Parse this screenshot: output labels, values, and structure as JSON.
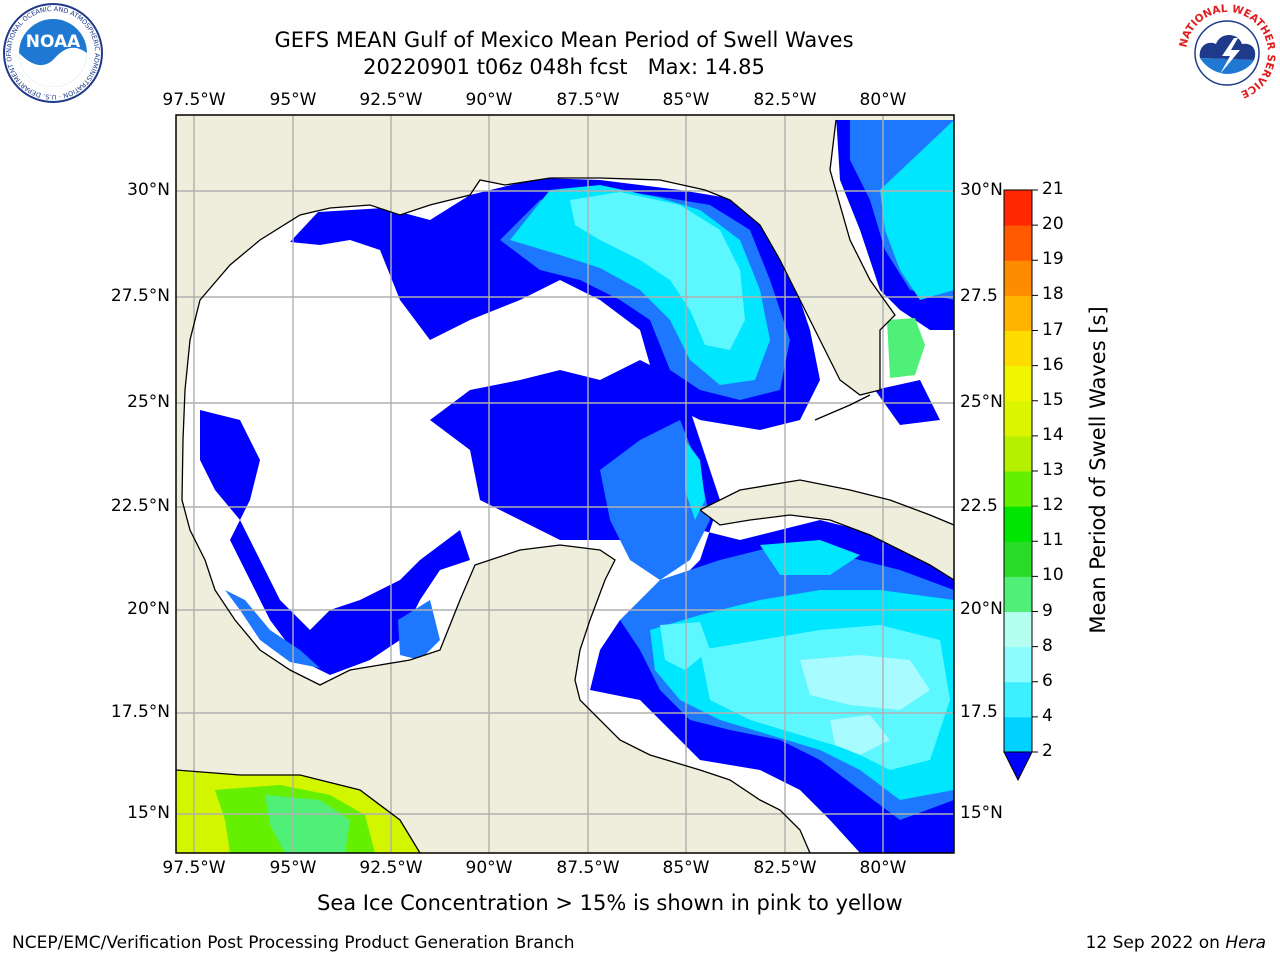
{
  "title_line1": "GEFS MEAN Gulf of Mexico Mean Period of Swell Waves",
  "title_line2": "20220901 t06z 048h fcst   Max: 14.85",
  "lon_labels": [
    "97.5°W",
    "95°W",
    "92.5°W",
    "90°W",
    "87.5°W",
    "85°W",
    "82.5°W",
    "80°W"
  ],
  "lat_labels_left": [
    "30°N",
    "27.5°N",
    "25°N",
    "22.5°N",
    "20°N",
    "17.5°N",
    "15°N"
  ],
  "lat_labels_right": [
    "30°N",
    "27.5",
    "25°N",
    "22.5",
    "20°N",
    "17.5",
    "15°N"
  ],
  "colorbar": {
    "label": "Mean Period of Swell Waves [s]",
    "ticks": [
      "2",
      "4",
      "6",
      "8",
      "9",
      "10",
      "11",
      "12",
      "13",
      "14",
      "15",
      "16",
      "17",
      "18",
      "19",
      "20",
      "21"
    ],
    "colors": [
      "#1e6ef0",
      "#00d2ff",
      "#3cf0ff",
      "#8cfcff",
      "#b4fff0",
      "#50f078",
      "#28dc28",
      "#00e600",
      "#64f000",
      "#b4f000",
      "#dcf500",
      "#f0f500",
      "#ffdc00",
      "#ffb400",
      "#ff8c00",
      "#ff5a00",
      "#ff2800",
      "#ff0000"
    ],
    "under_color": "#0000ff"
  },
  "colors": {
    "land": "#efeedc",
    "grid": "#b0b0b0",
    "c_lt2": "#0000ff",
    "c_2_4": "#1e78ff",
    "c_4_6": "#00e6ff",
    "c_6_8": "#5cf7ff",
    "c_8_9": "#a8fbff",
    "c_9_10": "#50f078",
    "c_ice_yellow": "#d2f500"
  },
  "bottom_note": "Sea Ice Concentration > 15% is shown in pink to yellow",
  "footer_left": "NCEP/EMC/Verification Post Processing Product Generation Branch",
  "footer_right_date": "12 Sep 2022 on ",
  "footer_right_machine": "Hera",
  "logos": {
    "noaa_text": "NOAA",
    "noaa_ring": "NATIONAL OCEANIC AND ATMOSPHERIC ADMINISTRATION · U.S. DEPARTMENT OF COMMERCE",
    "nws_ring": "NATIONAL WEATHER SERVICE"
  }
}
